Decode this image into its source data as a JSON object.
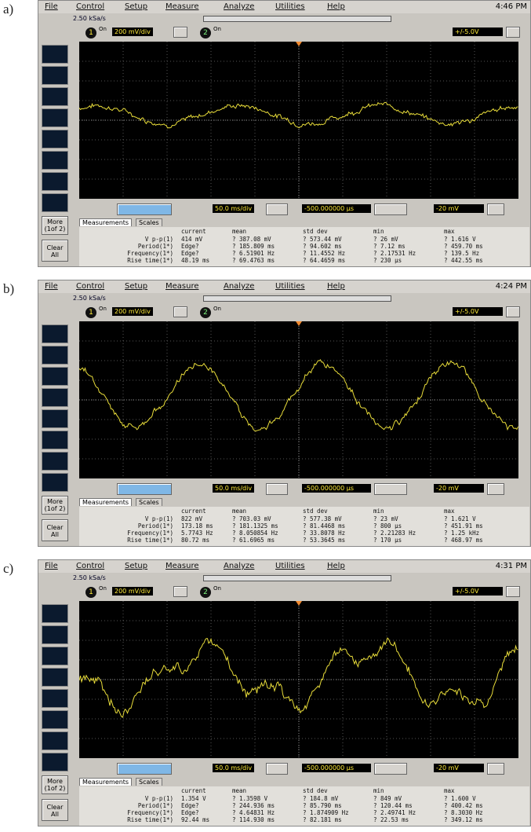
{
  "panels": [
    {
      "label": "a)",
      "time": "4:46 PM",
      "menu": [
        "File",
        "Control",
        "Setup",
        "Measure",
        "Analyze",
        "Utilities",
        "Help"
      ],
      "sample_rate": "2.50 kSa/s",
      "channel1": "1",
      "channel1_state": "On",
      "channel1_scale": "200 mV/div",
      "channel2": "2",
      "channel2_state": "On",
      "range": "+/-5.0V",
      "timebase": "50.0 ms/div",
      "delay": "-500.000000 µs",
      "trigger_level": "-20 mV",
      "more": "More (1of 2)",
      "clear": "Clear All",
      "tabs": [
        "Measurements",
        "Scales"
      ],
      "table": {
        "header": [
          "",
          "current",
          "mean",
          "std dev",
          "min",
          "max"
        ],
        "rows": [
          [
            "V p-p(1)",
            "414 mV",
            "? 387.08 mV",
            "? 573.44 mV",
            "? 26 mV",
            "? 1.616 V"
          ],
          [
            "Period(1*)",
            "Edge?",
            "? 185.809 ms",
            "? 94.602 ms",
            "? 7.12 ms",
            "? 459.70 ms"
          ],
          [
            "Frequency(1*)",
            "Edge?",
            "? 6.51901 Hz",
            "? 11.4552 Hz",
            "? 2.17531 Hz",
            "? 139.5 Hz"
          ],
          [
            "Rise time(1*)",
            "48.19 ms",
            "? 69.4763 ms",
            "? 64.4659 ms",
            "? 230 µs",
            "? 442.55 ms"
          ]
        ]
      }
    },
    {
      "label": "b)",
      "time": "4:24 PM",
      "menu": [
        "File",
        "Control",
        "Setup",
        "Measure",
        "Analyze",
        "Utilities",
        "Help"
      ],
      "sample_rate": "2.50 kSa/s",
      "channel1": "1",
      "channel1_state": "On",
      "channel1_scale": "200 mV/div",
      "channel2": "2",
      "channel2_state": "On",
      "range": "+/-5.0V",
      "timebase": "50.0 ms/div",
      "delay": "-500.000000 µs",
      "trigger_level": "-20 mV",
      "more": "More (1of 2)",
      "clear": "Clear All",
      "tabs": [
        "Measurements",
        "Scales"
      ],
      "table": {
        "header": [
          "",
          "current",
          "mean",
          "std dev",
          "min",
          "max"
        ],
        "rows": [
          [
            "V p-p(1)",
            "822 mV",
            "? 703.03 mV",
            "? 577.38 mV",
            "? 23 mV",
            "? 1.621 V"
          ],
          [
            "Period(1*)",
            "173.18 ms",
            "? 181.1325 ms",
            "? 81.4468 ms",
            "? 800 µs",
            "? 451.91 ms"
          ],
          [
            "Frequency(1*)",
            "5.7743 Hz",
            "? 8.050854 Hz",
            "? 33.8078 Hz",
            "? 2.21283 Hz",
            "? 1.25 kHz"
          ],
          [
            "Rise time(1*)",
            "80.72 ms",
            "? 61.6965 ms",
            "? 53.3645 ms",
            "? 170 µs",
            "? 468.97 ms"
          ]
        ]
      }
    },
    {
      "label": "c)",
      "time": "4:31 PM",
      "menu": [
        "File",
        "Control",
        "Setup",
        "Measure",
        "Analyze",
        "Utilities",
        "Help"
      ],
      "sample_rate": "2.50 kSa/s",
      "channel1": "1",
      "channel1_state": "On",
      "channel1_scale": "200 mV/div",
      "channel2": "2",
      "channel2_state": "On",
      "range": "+/-5.0V",
      "timebase": "50.0 ms/div",
      "delay": "-500.000000 µs",
      "trigger_level": "-20 mV",
      "more": "More (1of 2)",
      "clear": "Clear All",
      "tabs": [
        "Measurements",
        "Scales"
      ],
      "table": {
        "header": [
          "",
          "current",
          "mean",
          "std dev",
          "min",
          "max"
        ],
        "rows": [
          [
            "V p-p(1)",
            "1.354 V",
            "? 1.3598 V",
            "? 184.8 mV",
            "? 849 mV",
            "? 1.600 V"
          ],
          [
            "Period(1*)",
            "Edge?",
            "? 244.936 ms",
            "? 85.790 ms",
            "? 120.44 ms",
            "? 400.42 ms"
          ],
          [
            "Frequency(1*)",
            "Edge?",
            "? 4.64831 Hz",
            "? 1.874909 Hz",
            "? 2.49741 Hz",
            "? 8.3030 Hz"
          ],
          [
            "Rise time(1*)",
            "92.44 ms",
            "? 114.930 ms",
            "? 82.181 ms",
            "? 22.53 ms",
            "? 349.12 ms"
          ]
        ]
      }
    }
  ]
}
